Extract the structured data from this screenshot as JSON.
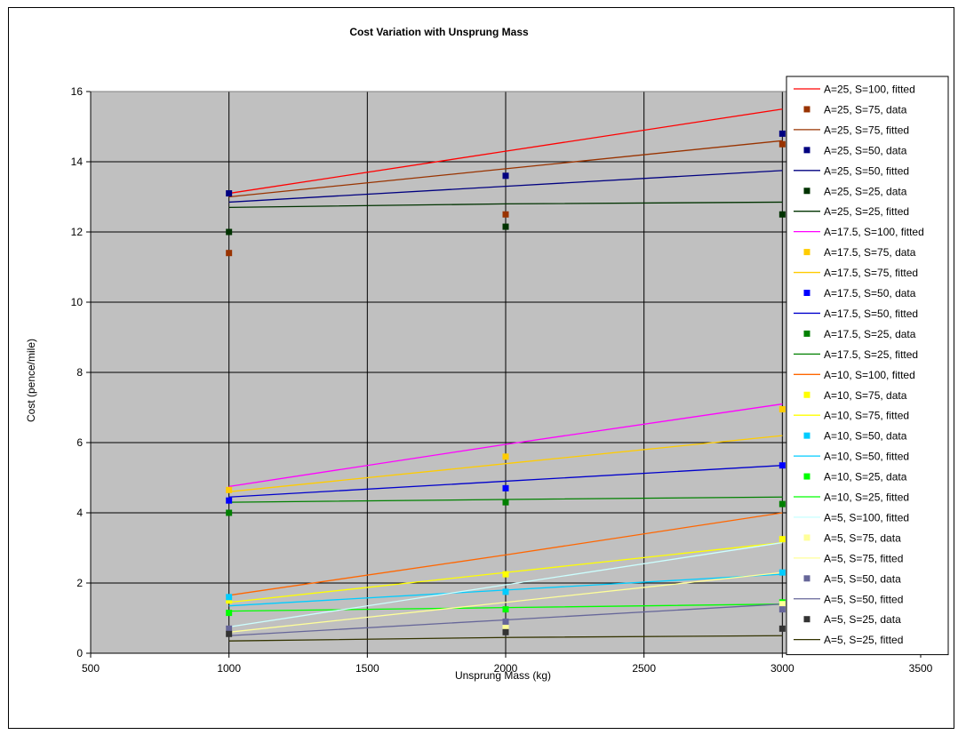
{
  "chart_data": {
    "type": "scatter",
    "title": "Cost Variation with Unsprung Mass",
    "xlabel": "Unsprung Mass (kg)",
    "ylabel": "Cost (pence/mile)",
    "xlim": [
      500,
      3500
    ],
    "ylim": [
      0,
      16
    ],
    "xticks": [
      "500",
      "1000",
      "1500",
      "2000",
      "2500",
      "3000",
      "3500"
    ],
    "yticks": [
      "0",
      "2",
      "4",
      "6",
      "8",
      "10",
      "12",
      "14",
      "16"
    ],
    "grid": true,
    "legend_position": "right",
    "plot_background": "#c0c0c0",
    "series": [
      {
        "name": "A=25, S=100, fitted",
        "kind": "line",
        "color": "#ff0000",
        "x": [
          1000,
          2000,
          3000
        ],
        "y": [
          13.1,
          14.3,
          15.5
        ]
      },
      {
        "name": "A=25, S=75, data",
        "kind": "marker",
        "color": "#993300",
        "x": [
          1000,
          2000,
          3000
        ],
        "y": [
          11.4,
          12.5,
          14.5
        ]
      },
      {
        "name": "A=25, S=75, fitted",
        "kind": "line",
        "color": "#993300",
        "x": [
          1000,
          2000,
          3000
        ],
        "y": [
          13.0,
          13.8,
          14.6
        ]
      },
      {
        "name": "A=25, S=50, data",
        "kind": "marker",
        "color": "#000080",
        "x": [
          1000,
          2000,
          3000
        ],
        "y": [
          13.1,
          13.6,
          14.8
        ]
      },
      {
        "name": "A=25, S=50, fitted",
        "kind": "line",
        "color": "#000080",
        "x": [
          1000,
          2000,
          3000
        ],
        "y": [
          12.85,
          13.3,
          13.75
        ]
      },
      {
        "name": "A=25, S=25, data",
        "kind": "marker",
        "color": "#003300",
        "x": [
          1000,
          2000,
          3000
        ],
        "y": [
          12.0,
          12.15,
          12.5
        ]
      },
      {
        "name": "A=25, S=25, fitted",
        "kind": "line",
        "color": "#003300",
        "x": [
          1000,
          2000,
          3000
        ],
        "y": [
          12.7,
          12.8,
          12.85
        ]
      },
      {
        "name": "A=17.5, S=100, fitted",
        "kind": "line",
        "color": "#ff00ff",
        "x": [
          1000,
          2000,
          3000
        ],
        "y": [
          4.75,
          5.95,
          7.1
        ]
      },
      {
        "name": "A=17.5, S=75, data",
        "kind": "marker",
        "color": "#ffcc00",
        "x": [
          1000,
          2000,
          3000
        ],
        "y": [
          4.65,
          5.6,
          6.95
        ]
      },
      {
        "name": "A=17.5, S=75, fitted",
        "kind": "line",
        "color": "#ffcc00",
        "x": [
          1000,
          2000,
          3000
        ],
        "y": [
          4.6,
          5.4,
          6.2
        ]
      },
      {
        "name": "A=17.5, S=50, data",
        "kind": "marker",
        "color": "#0000ff",
        "x": [
          1000,
          2000,
          3000
        ],
        "y": [
          4.35,
          4.7,
          5.35
        ]
      },
      {
        "name": "A=17.5, S=50, fitted",
        "kind": "line",
        "color": "#0000cc",
        "x": [
          1000,
          2000,
          3000
        ],
        "y": [
          4.45,
          4.9,
          5.35
        ]
      },
      {
        "name": "A=17.5, S=25, data",
        "kind": "marker",
        "color": "#008000",
        "x": [
          1000,
          2000,
          3000
        ],
        "y": [
          4.0,
          4.3,
          4.25
        ]
      },
      {
        "name": "A=17.5, S=25, fitted",
        "kind": "line",
        "color": "#008000",
        "x": [
          1000,
          2000,
          3000
        ],
        "y": [
          4.3,
          4.38,
          4.45
        ]
      },
      {
        "name": "A=10, S=100, fitted",
        "kind": "line",
        "color": "#ff6600",
        "x": [
          1000,
          2000,
          3000
        ],
        "y": [
          1.65,
          2.8,
          4.0
        ]
      },
      {
        "name": "A=10, S=75, data",
        "kind": "marker",
        "color": "#ffff00",
        "x": [
          1000,
          2000,
          3000
        ],
        "y": [
          1.5,
          2.25,
          3.25
        ]
      },
      {
        "name": "A=10, S=75, fitted",
        "kind": "line",
        "color": "#ffff00",
        "x": [
          1000,
          2000,
          3000
        ],
        "y": [
          1.45,
          2.3,
          3.15
        ]
      },
      {
        "name": "A=10, S=50, data",
        "kind": "marker",
        "color": "#00ccff",
        "x": [
          1000,
          2000,
          3000
        ],
        "y": [
          1.6,
          1.75,
          2.3
        ]
      },
      {
        "name": "A=10, S=50, fitted",
        "kind": "line",
        "color": "#00ccff",
        "x": [
          1000,
          2000,
          3000
        ],
        "y": [
          1.35,
          1.8,
          2.25
        ]
      },
      {
        "name": "A=10, S=25, data",
        "kind": "marker",
        "color": "#00ff00",
        "x": [
          1000,
          2000,
          3000
        ],
        "y": [
          1.15,
          1.25,
          1.45
        ]
      },
      {
        "name": "A=10, S=25, fitted",
        "kind": "line",
        "color": "#00ff00",
        "x": [
          1000,
          2000,
          3000
        ],
        "y": [
          1.2,
          1.3,
          1.4
        ]
      },
      {
        "name": "A=5, S=100, fitted",
        "kind": "line",
        "color": "#ccffff",
        "x": [
          1000,
          2000,
          3000
        ],
        "y": [
          0.75,
          1.95,
          3.15
        ]
      },
      {
        "name": "A=5, S=75, data",
        "kind": "marker",
        "color": "#ffff99",
        "x": [
          1000,
          2000,
          3000
        ],
        "y": [
          0.65,
          0.75,
          1.4
        ]
      },
      {
        "name": "A=5, S=75, fitted",
        "kind": "line",
        "color": "#ffff99",
        "x": [
          1000,
          2000,
          3000
        ],
        "y": [
          0.6,
          1.45,
          2.3
        ]
      },
      {
        "name": "A=5, S=50, data",
        "kind": "marker",
        "color": "#666699",
        "x": [
          1000,
          2000,
          3000
        ],
        "y": [
          0.7,
          0.9,
          1.25
        ]
      },
      {
        "name": "A=5, S=50, fitted",
        "kind": "line",
        "color": "#666699",
        "x": [
          1000,
          2000,
          3000
        ],
        "y": [
          0.5,
          0.95,
          1.4
        ]
      },
      {
        "name": "A=5, S=25, data",
        "kind": "marker",
        "color": "#333333",
        "x": [
          1000,
          2000,
          3000
        ],
        "y": [
          0.55,
          0.6,
          0.7
        ]
      },
      {
        "name": "A=5, S=25, fitted",
        "kind": "line",
        "color": "#333300",
        "x": [
          1000,
          2000,
          3000
        ],
        "y": [
          0.35,
          0.45,
          0.5
        ]
      }
    ]
  }
}
